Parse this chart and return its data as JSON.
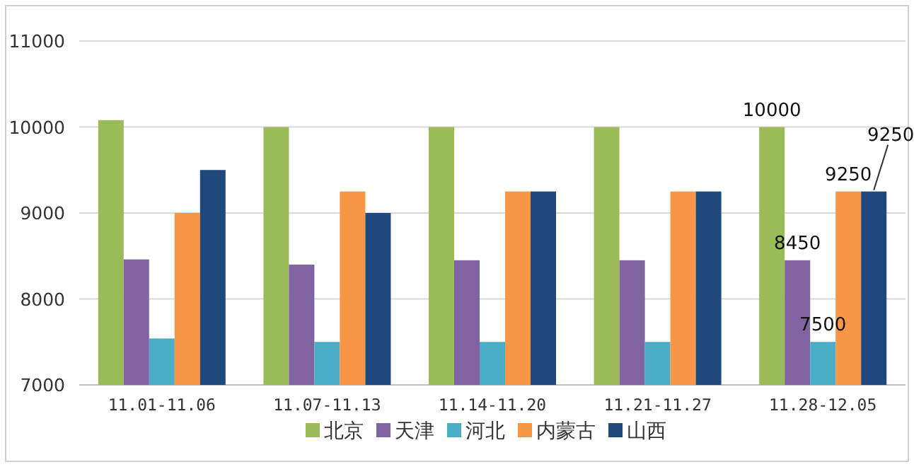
{
  "chart_data": {
    "type": "bar",
    "categories": [
      "11.01-11.06",
      "11.07-11.13",
      "11.14-11.20",
      "11.21-11.27",
      "11.28-12.05"
    ],
    "series": [
      {
        "name": "北京",
        "color": "#9bbb59",
        "values": [
          10080,
          10000,
          10000,
          10000,
          10000
        ],
        "value_labels": [
          null,
          null,
          null,
          null,
          "10000"
        ]
      },
      {
        "name": "天津",
        "color": "#8064a2",
        "values": [
          8460,
          8400,
          8450,
          8450,
          8450
        ],
        "value_labels": [
          null,
          null,
          null,
          null,
          "8450"
        ]
      },
      {
        "name": "河北",
        "color": "#4bacc6",
        "values": [
          7540,
          7500,
          7500,
          7500,
          7500
        ],
        "value_labels": [
          null,
          null,
          null,
          null,
          "7500"
        ]
      },
      {
        "name": "内蒙古",
        "color": "#f79646",
        "values": [
          9000,
          9250,
          9250,
          9250,
          9250
        ],
        "value_labels": [
          null,
          null,
          null,
          null,
          "9250"
        ]
      },
      {
        "name": "山西",
        "color": "#1f497d",
        "values": [
          9500,
          9000,
          9250,
          9250,
          9250
        ],
        "value_labels": [
          null,
          null,
          null,
          null,
          "9250"
        ]
      }
    ],
    "ylim": [
      7000,
      11000
    ],
    "yticks": [
      7000,
      8000,
      9000,
      10000,
      11000
    ],
    "grid": "y",
    "legend": "bottom"
  }
}
